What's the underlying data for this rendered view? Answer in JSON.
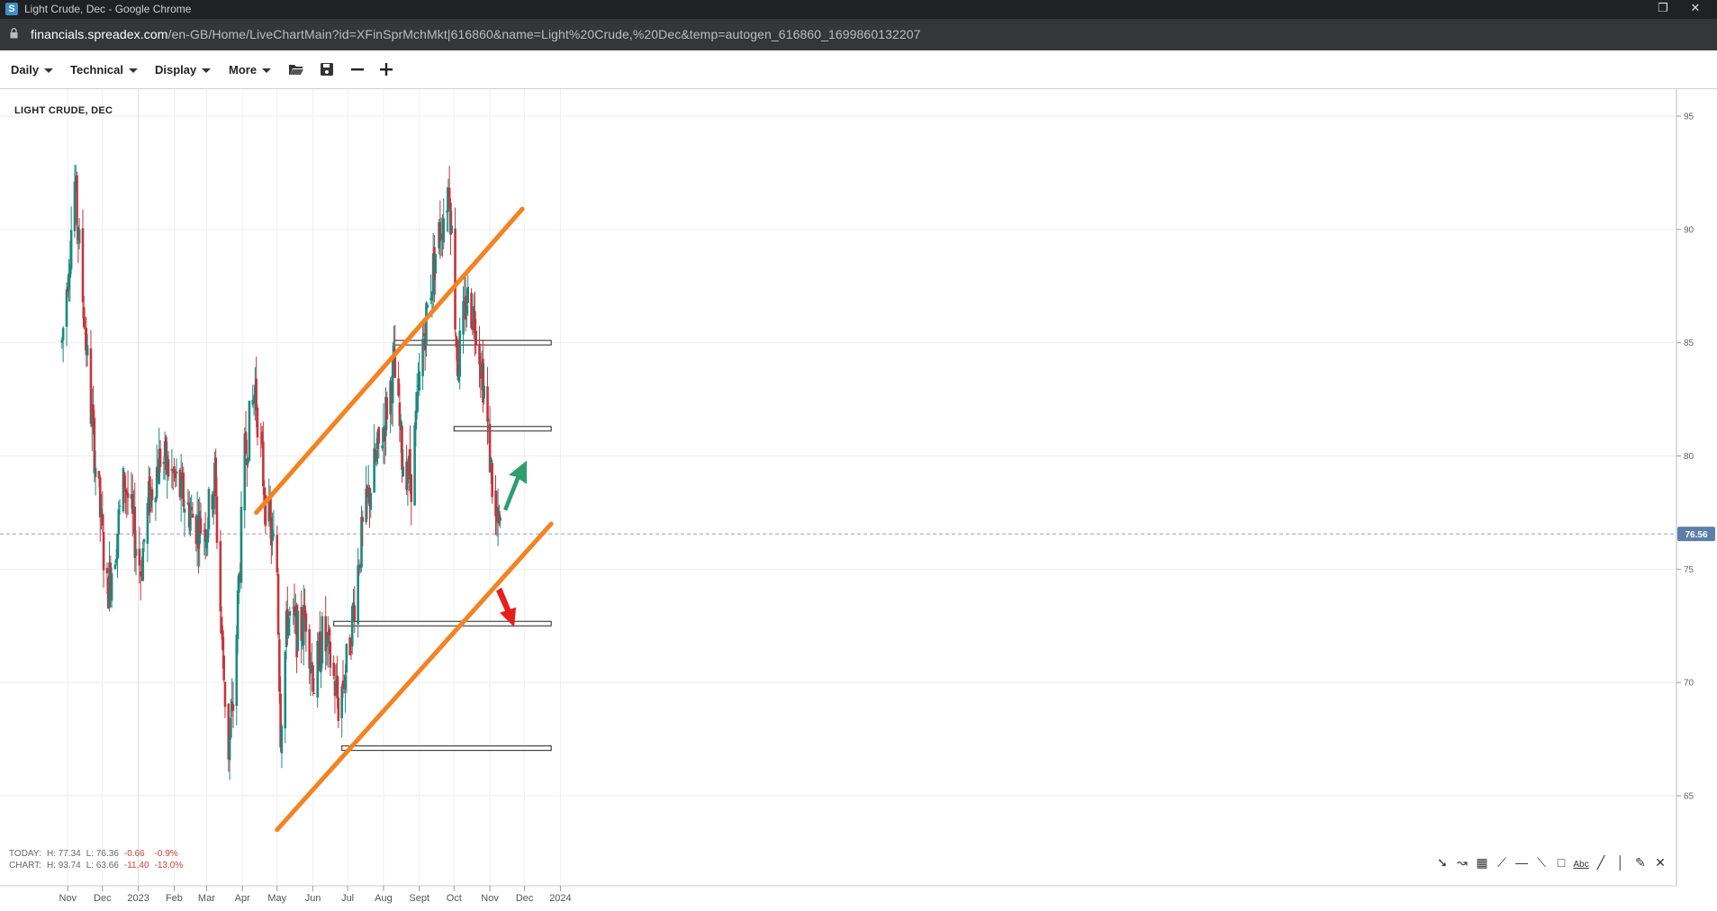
{
  "window": {
    "title": "Light Crude, Dec - Google Chrome",
    "favicon_letter": "S",
    "url_host": "financials.spreadex.com",
    "url_path": "/en-GB/Home/LiveChartMain?id=XFinSprMchMkt|616860&name=Light%20Crude,%20Dec&temp=autogen_616860_1699860132207"
  },
  "toolbar": {
    "menus": [
      "Daily",
      "Technical",
      "Display",
      "More"
    ],
    "icons": [
      "folder-open-icon",
      "save-icon",
      "zoom-out-icon",
      "zoom-in-icon"
    ]
  },
  "chart_title": "LIGHT CRUDE, DEC",
  "stats": {
    "today": {
      "label": "TODAY:",
      "high": "H: 77.34",
      "low": "L: 76.36",
      "change": "-0.66",
      "pct": "-0.9%"
    },
    "chart": {
      "label": "CHART:",
      "high": "H: 93.74",
      "low": "L: 63.66",
      "change": "-11.40",
      "pct": "-13.0%"
    }
  },
  "drawing_tools": [
    "arrow-tool-icon",
    "curve-tool-icon",
    "grid-tool-icon",
    "fan-tool-icon",
    "horizontal-line-tool-icon",
    "trend-line-tool-icon",
    "rectangle-tool-icon",
    "text-tool-icon",
    "line-tool-icon",
    "vertical-line-tool-icon",
    "ruler-tool-icon",
    "close-tools-icon"
  ],
  "drawing_tool_text": "Abc",
  "colors": {
    "up": "#1a8a80",
    "down": "#c8333a",
    "trendline": "#f58220",
    "arrow_up": "#2e9e6e",
    "arrow_down": "#e81e1e",
    "current_price_badge": "#5b7fa8"
  },
  "chart_data": {
    "type": "candlestick",
    "instrument": "LIGHT CRUDE, DEC",
    "x_labels": [
      "Nov",
      "Dec",
      "2023",
      "Feb",
      "Mar",
      "Apr",
      "May",
      "Jun",
      "Jul",
      "Aug",
      "Sept",
      "Oct",
      "Nov",
      "Dec",
      "2024"
    ],
    "y_ticks": [
      65,
      70,
      75,
      80,
      85,
      90,
      95
    ],
    "ylim": [
      63,
      96
    ],
    "current_price": 76.56,
    "current_price_label": "76.56",
    "trendlines": [
      {
        "from": [
          "2023-04-13",
          77.5
        ],
        "to": [
          "2023-11-29",
          90.9
        ]
      },
      {
        "from": [
          "2023-05-01",
          63.5
        ],
        "to": [
          "2023-12-24",
          77.0
        ]
      }
    ],
    "levels": [
      {
        "from": "2023-08-10",
        "to": "2023-12-24",
        "value": 85.0
      },
      {
        "from": "2023-10-01",
        "to": "2023-12-24",
        "value": 81.2
      },
      {
        "from": "2023-06-19",
        "to": "2023-12-24",
        "value": 72.6
      },
      {
        "from": "2023-06-26",
        "to": "2023-12-24",
        "value": 67.1
      }
    ],
    "annotations": [
      {
        "type": "arrow-up",
        "date": "2023-11-22",
        "value": 79
      },
      {
        "type": "arrow-down",
        "date": "2023-11-22",
        "value": 73
      }
    ],
    "anchors": [
      [
        "2022-10-27",
        85
      ],
      [
        "2022-11-07",
        92
      ],
      [
        "2022-11-14",
        87
      ],
      [
        "2022-11-21",
        82
      ],
      [
        "2022-11-28",
        78
      ],
      [
        "2022-12-05",
        74
      ],
      [
        "2022-12-12",
        76
      ],
      [
        "2022-12-20",
        79
      ],
      [
        "2023-01-03",
        75
      ],
      [
        "2023-01-10",
        78
      ],
      [
        "2023-01-20",
        80
      ],
      [
        "2023-02-01",
        79
      ],
      [
        "2023-02-10",
        78
      ],
      [
        "2023-02-20",
        77
      ],
      [
        "2023-03-01",
        77
      ],
      [
        "2023-03-08",
        79
      ],
      [
        "2023-03-15",
        71
      ],
      [
        "2023-03-20",
        67
      ],
      [
        "2023-03-24",
        69
      ],
      [
        "2023-04-03",
        80
      ],
      [
        "2023-04-12",
        83
      ],
      [
        "2023-04-21",
        78
      ],
      [
        "2023-05-01",
        75
      ],
      [
        "2023-05-04",
        68
      ],
      [
        "2023-05-10",
        73
      ],
      [
        "2023-05-20",
        72
      ],
      [
        "2023-05-26",
        73
      ],
      [
        "2023-06-02",
        70
      ],
      [
        "2023-06-09",
        72
      ],
      [
        "2023-06-16",
        71
      ],
      [
        "2023-06-23",
        69
      ],
      [
        "2023-07-01",
        71
      ],
      [
        "2023-07-12",
        76
      ],
      [
        "2023-07-22",
        79
      ],
      [
        "2023-07-31",
        81
      ],
      [
        "2023-08-10",
        84
      ],
      [
        "2023-08-17",
        80
      ],
      [
        "2023-08-25",
        79
      ],
      [
        "2023-09-04",
        85
      ],
      [
        "2023-09-15",
        89
      ],
      [
        "2023-09-27",
        92
      ],
      [
        "2023-10-04",
        84
      ],
      [
        "2023-10-12",
        87
      ],
      [
        "2023-10-20",
        86
      ],
      [
        "2023-10-27",
        83
      ],
      [
        "2023-11-01",
        80
      ],
      [
        "2023-11-06",
        77
      ],
      [
        "2023-11-10",
        76.6
      ]
    ]
  }
}
